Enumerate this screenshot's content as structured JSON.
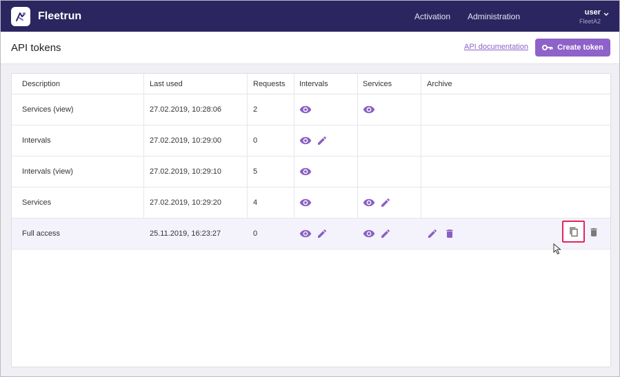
{
  "app": {
    "name": "Fleetrun"
  },
  "nav": {
    "activation": "Activation",
    "administration": "Administration"
  },
  "user": {
    "name": "user",
    "org": "FleetA2"
  },
  "page": {
    "title": "API tokens",
    "api_doc_link": "API documentation",
    "create_button": "Create token"
  },
  "table": {
    "headers": {
      "description": "Description",
      "last_used": "Last used",
      "requests": "Requests",
      "intervals": "Intervals",
      "services": "Services",
      "archive": "Archive"
    },
    "rows": [
      {
        "description": "Services (view)",
        "last_used": "27.02.2019, 10:28:06",
        "requests": "2",
        "intervals": [
          "view"
        ],
        "services": [
          "view"
        ],
        "archive": []
      },
      {
        "description": "Intervals",
        "last_used": "27.02.2019, 10:29:00",
        "requests": "0",
        "intervals": [
          "view",
          "edit"
        ],
        "services": [],
        "archive": []
      },
      {
        "description": "Intervals (view)",
        "last_used": "27.02.2019, 10:29:10",
        "requests": "5",
        "intervals": [
          "view"
        ],
        "services": [],
        "archive": []
      },
      {
        "description": "Services",
        "last_used": "27.02.2019, 10:29:20",
        "requests": "4",
        "intervals": [
          "view"
        ],
        "services": [
          "view",
          "edit"
        ],
        "archive": []
      },
      {
        "description": "Full access",
        "last_used": "25.11.2019, 16:23:27",
        "requests": "0",
        "intervals": [
          "view",
          "edit"
        ],
        "services": [
          "view",
          "edit"
        ],
        "archive": [
          "edit",
          "delete"
        ]
      }
    ]
  },
  "colors": {
    "topbar": "#2b2560",
    "accent": "#8e62c9",
    "icon": "#8a5fc4",
    "highlight_border": "#e0245e"
  },
  "icons": {
    "view": "eye-icon",
    "edit": "pencil-icon",
    "delete": "trash-icon",
    "copy": "copy-icon",
    "key": "key-icon"
  }
}
